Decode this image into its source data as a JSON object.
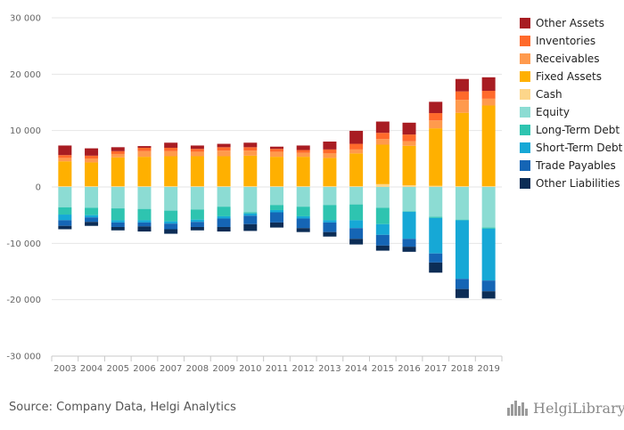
{
  "source": "Source: Company Data, Helgi Analytics",
  "logo": {
    "text": "HelgiLibrary"
  },
  "chart_data": {
    "type": "bar",
    "stacked": true,
    "title": "",
    "xlabel": "",
    "ylabel": "",
    "ylim": [
      -30000,
      30000
    ],
    "yticks": [
      30000,
      20000,
      10000,
      0,
      -10000,
      -20000,
      -30000
    ],
    "ytick_labels": [
      "30 000",
      "20 000",
      "10 000",
      "0",
      "-10 000",
      "-20 000",
      "-30 000"
    ],
    "grid": true,
    "legend_position": "right",
    "categories": [
      "2003",
      "2004",
      "2005",
      "2006",
      "2007",
      "2008",
      "2009",
      "2010",
      "2011",
      "2012",
      "2013",
      "2014",
      "2015",
      "2016",
      "2017",
      "2018",
      "2019"
    ],
    "series": [
      {
        "name": "Cash",
        "group": "assets",
        "color": "#fdd68a",
        "values": [
          150,
          150,
          150,
          150,
          150,
          150,
          150,
          150,
          150,
          150,
          150,
          150,
          500,
          300,
          200,
          150,
          150
        ]
      },
      {
        "name": "Fixed Assets",
        "group": "assets",
        "color": "#ffb000",
        "values": [
          4400,
          4200,
          5100,
          5200,
          5300,
          5300,
          5300,
          5400,
          5200,
          5200,
          5000,
          5800,
          7000,
          7000,
          10200,
          13000,
          14300
        ]
      },
      {
        "name": "Receivables",
        "group": "assets",
        "color": "#ff9a4d",
        "values": [
          600,
          700,
          600,
          1000,
          900,
          800,
          1000,
          900,
          900,
          700,
          800,
          700,
          1000,
          800,
          1400,
          2300,
          1200
        ]
      },
      {
        "name": "Inventories",
        "group": "assets",
        "color": "#ff6a2b",
        "values": [
          500,
          500,
          500,
          600,
          600,
          500,
          600,
          600,
          500,
          500,
          700,
          1000,
          1100,
          1200,
          1300,
          1500,
          1400
        ]
      },
      {
        "name": "Other Assets",
        "group": "assets",
        "color": "#a81c22",
        "values": [
          1700,
          1300,
          700,
          300,
          900,
          600,
          600,
          800,
          400,
          800,
          1400,
          2300,
          2000,
          2100,
          2000,
          2200,
          2400
        ]
      },
      {
        "name": "Equity",
        "group": "liabilities",
        "color": "#8cdcd3",
        "values": [
          -3600,
          -3700,
          -3800,
          -3900,
          -4200,
          -4000,
          -3500,
          -4500,
          -3200,
          -3500,
          -3200,
          -3100,
          -3700,
          -4300,
          -5300,
          -5800,
          -7200
        ]
      },
      {
        "name": "Long-Term Debt",
        "group": "liabilities",
        "color": "#2ec4b0",
        "values": [
          -1300,
          -1300,
          -2100,
          -2000,
          -1900,
          -1800,
          -1700,
          -200,
          -900,
          -1700,
          -2700,
          -2800,
          -2900,
          -100,
          -200,
          -100,
          -200
        ]
      },
      {
        "name": "Short-Term Debt",
        "group": "liabilities",
        "color": "#16a8d6",
        "values": [
          -1000,
          -400,
          -400,
          -400,
          -400,
          -400,
          -400,
          -400,
          -400,
          -400,
          -400,
          -1400,
          -1900,
          -4800,
          -6300,
          -10400,
          -9200
        ]
      },
      {
        "name": "Trade Payables",
        "group": "liabilities",
        "color": "#1565b5",
        "values": [
          -1000,
          -800,
          -800,
          -700,
          -1000,
          -900,
          -1500,
          -1500,
          -1800,
          -1700,
          -1700,
          -1900,
          -1900,
          -1400,
          -1600,
          -1800,
          -1900
        ]
      },
      {
        "name": "Other Liabilities",
        "group": "liabilities",
        "color": "#0c2d56",
        "values": [
          -600,
          -700,
          -600,
          -900,
          -800,
          -600,
          -800,
          -1200,
          -900,
          -700,
          -800,
          -1000,
          -900,
          -900,
          -1800,
          -1600,
          -1300
        ]
      }
    ],
    "legend_order": [
      "Other Assets",
      "Inventories",
      "Receivables",
      "Fixed Assets",
      "Cash",
      "Equity",
      "Long-Term Debt",
      "Short-Term Debt",
      "Trade Payables",
      "Other Liabilities"
    ]
  }
}
